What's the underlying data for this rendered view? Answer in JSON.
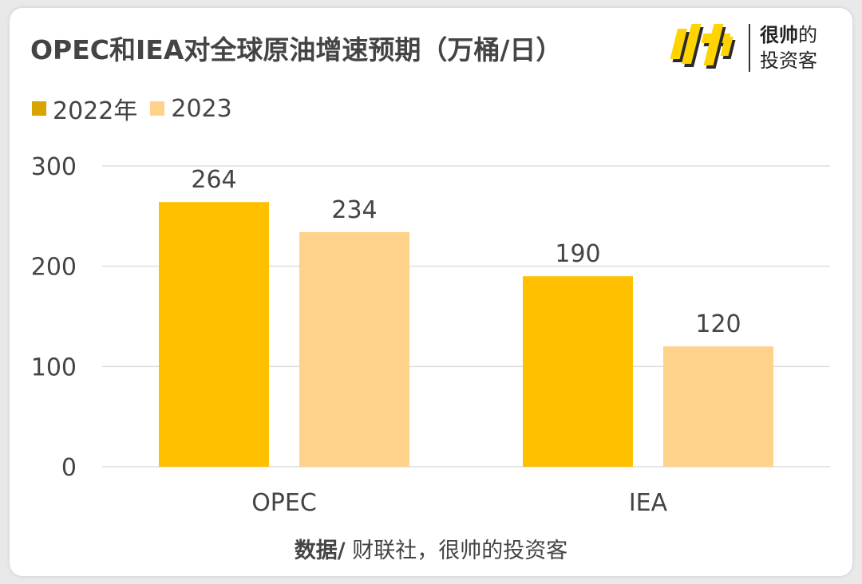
{
  "title": "OPEC和IEA对全球原油增速预期（万桶/日）",
  "logo": {
    "line1_strong": "很帅",
    "line1_rest": "的",
    "line2": "投资客"
  },
  "source": {
    "label": "数据/",
    "text": " 财联社，很帅的投资客"
  },
  "colors": {
    "series_2022": "#ffc000",
    "series_2023": "#ffd28c",
    "grid": "#dedede",
    "text": "#444444"
  },
  "chart_data": {
    "type": "bar",
    "categories": [
      "OPEC",
      "IEA"
    ],
    "series": [
      {
        "name": "2022年",
        "values": [
          264,
          190
        ]
      },
      {
        "name": "2023",
        "values": [
          234,
          120
        ]
      }
    ],
    "ylim": [
      0,
      300
    ],
    "yticks": [
      0,
      100,
      200,
      300
    ],
    "grid": true,
    "legend_position": "top-left"
  }
}
